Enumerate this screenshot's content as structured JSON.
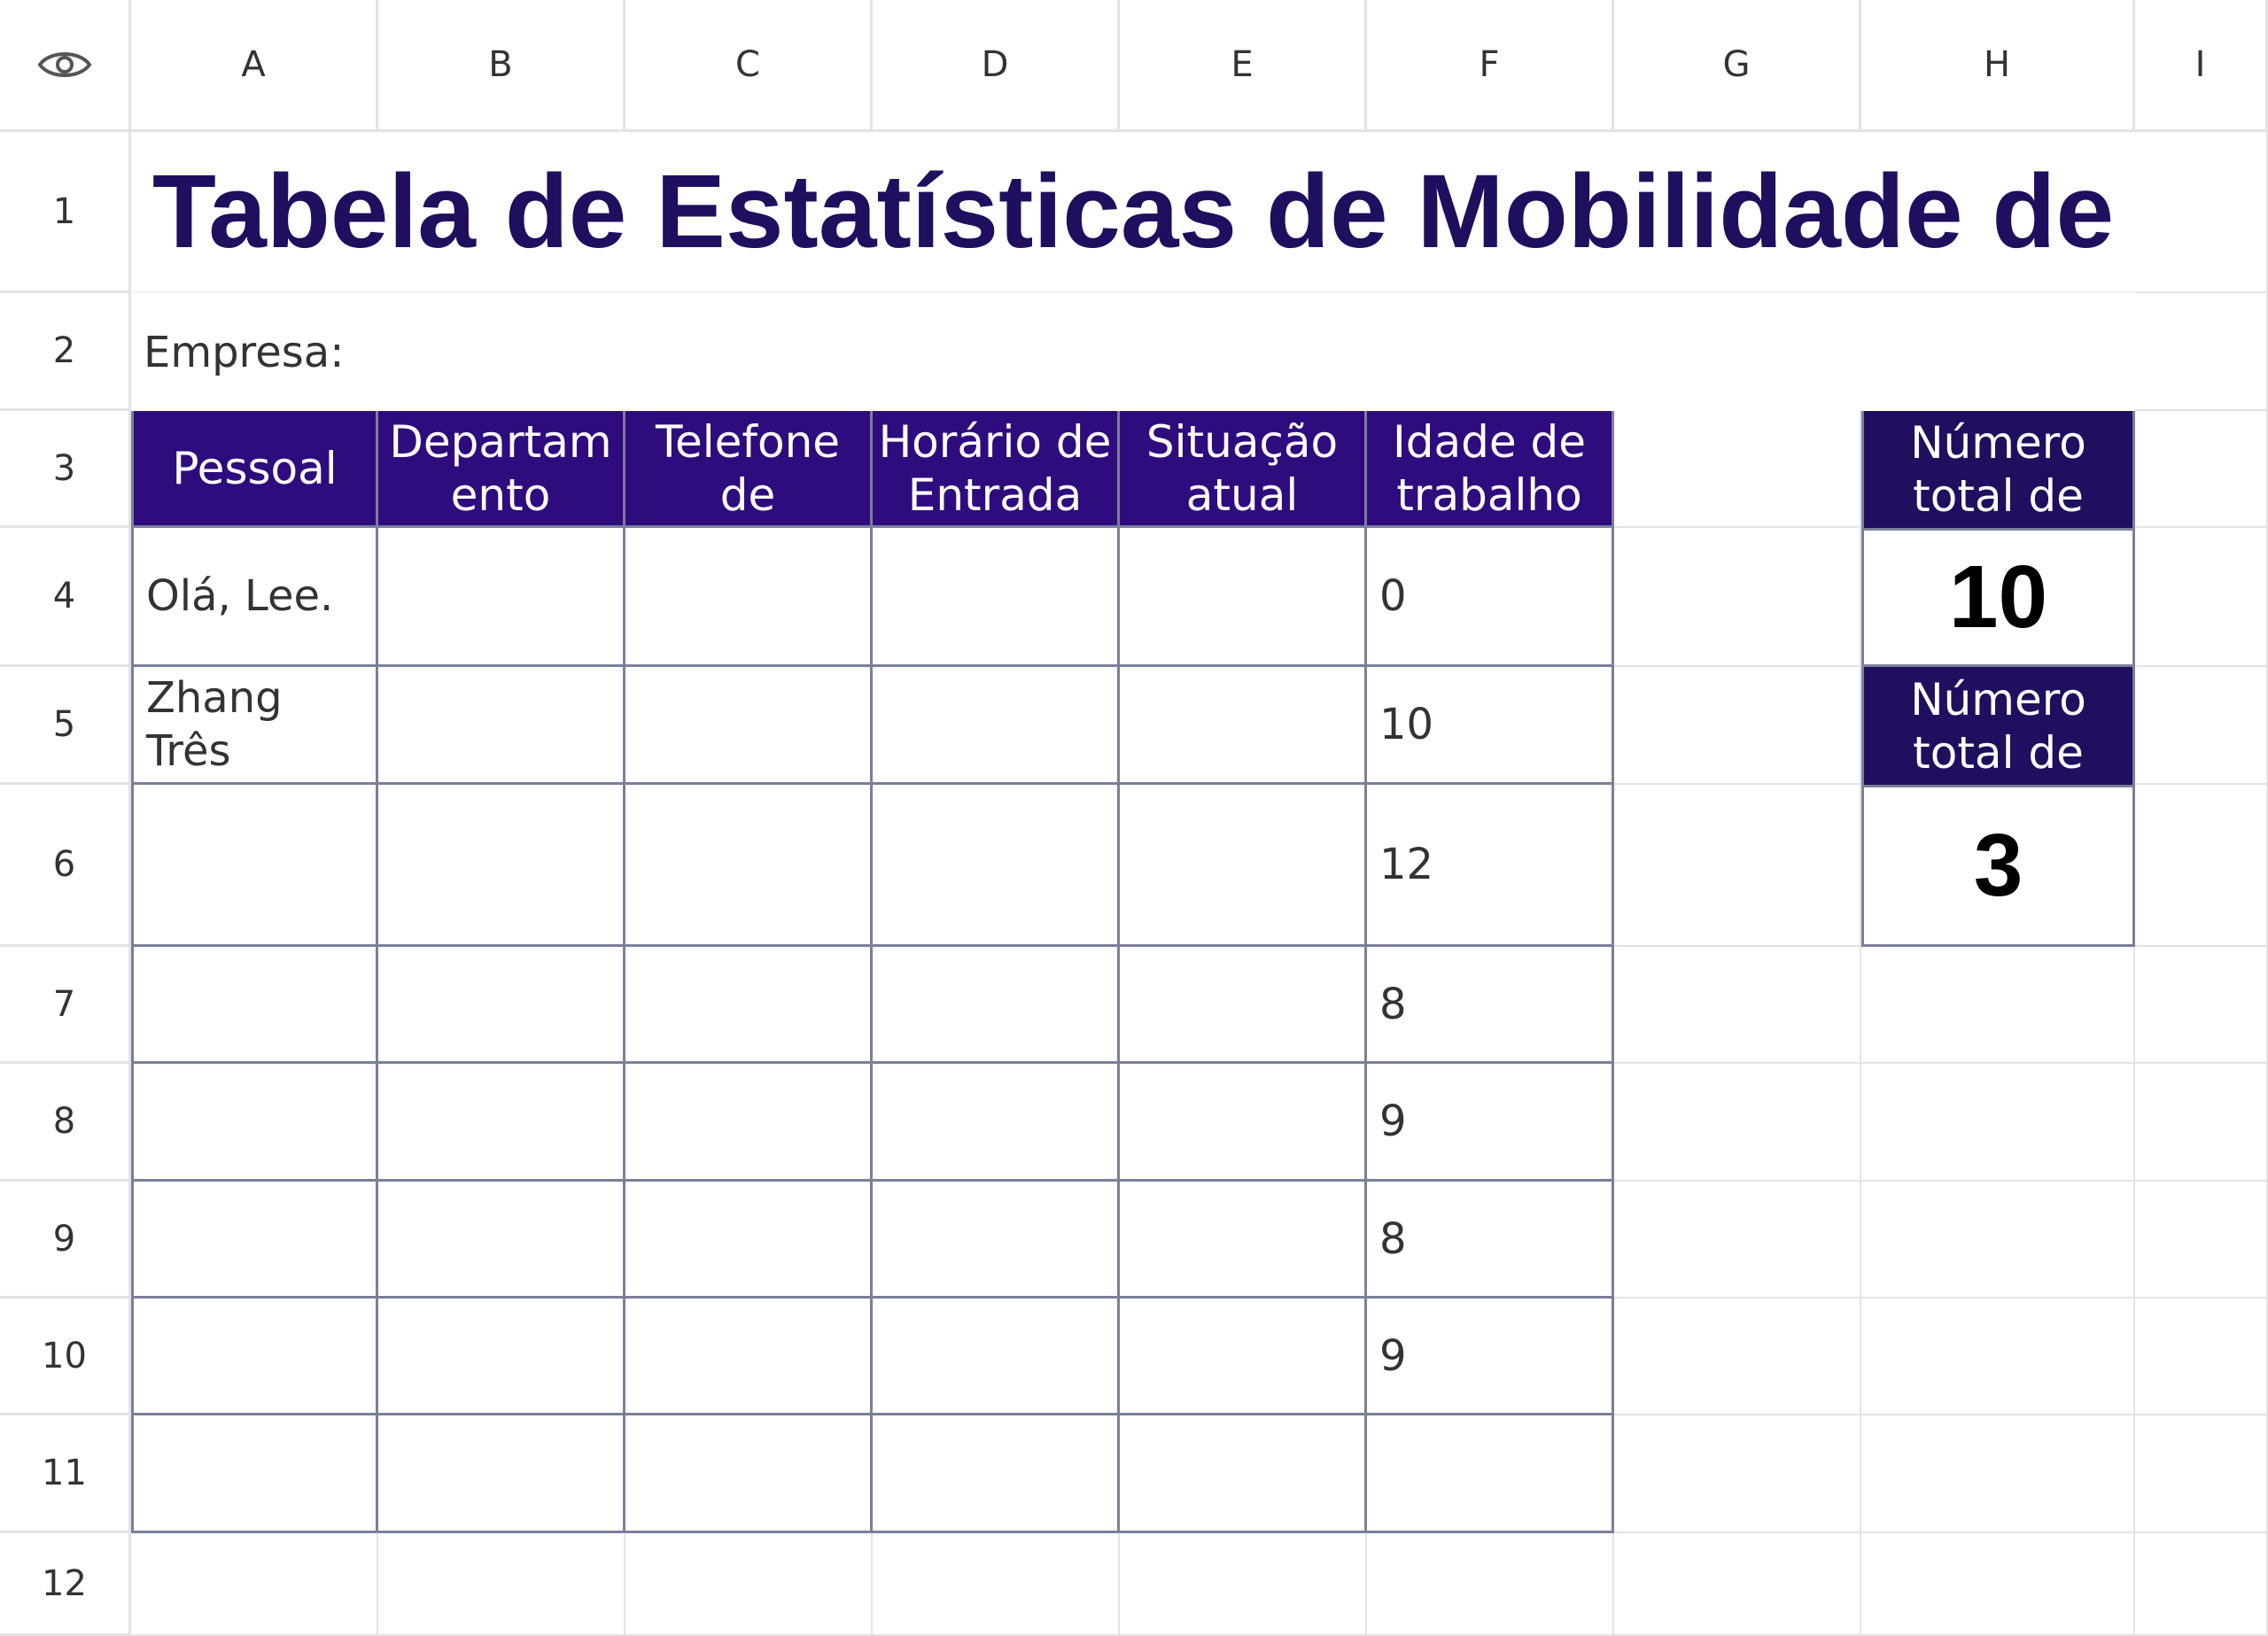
{
  "column_headers": [
    "A",
    "B",
    "C",
    "D",
    "E",
    "F",
    "G",
    "H",
    "I"
  ],
  "row_headers": [
    "1",
    "2",
    "3",
    "4",
    "5",
    "6",
    "7",
    "8",
    "9",
    "10",
    "11",
    "12"
  ],
  "title": "Tabela de Estatísticas de Mobilidade de",
  "company_label": "Empresa:",
  "table": {
    "headers": [
      "Pessoal",
      "Departam ento",
      "Telefone de",
      "Horário de Entrada",
      "Situação atual",
      "Idade de trabalho"
    ],
    "rows": [
      [
        "Olá, Lee.",
        "",
        "",
        "",
        "",
        "0"
      ],
      [
        "Zhang Três",
        "",
        "",
        "",
        "",
        "10"
      ],
      [
        "",
        "",
        "",
        "",
        "",
        "12"
      ],
      [
        "",
        "",
        "",
        "",
        "",
        "8"
      ],
      [
        "",
        "",
        "",
        "",
        "",
        "9"
      ],
      [
        "",
        "",
        "",
        "",
        "",
        "8"
      ],
      [
        "",
        "",
        "",
        "",
        "",
        "9"
      ],
      [
        "",
        "",
        "",
        "",
        "",
        ""
      ]
    ]
  },
  "stats": [
    {
      "label": "Número total de",
      "value": "10"
    },
    {
      "label": "Número total de",
      "value": "3"
    }
  ],
  "colors": {
    "header_fill": "#2e0c7e",
    "stat_header_fill": "#1f0f5e",
    "title_color": "#1f0f5e",
    "table_border": "#7a7f9a",
    "grid_line": "#e3e3e3"
  },
  "icons": {
    "corner": "eye-icon"
  }
}
